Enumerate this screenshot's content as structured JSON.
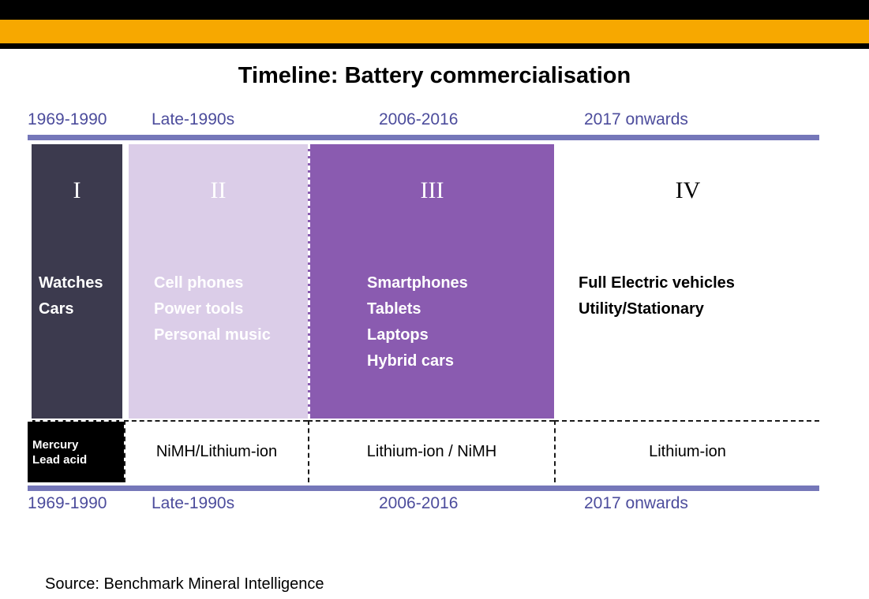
{
  "slide": {
    "title": "Timeline: Battery commercialisation",
    "source": "Source: Benchmark Mineral Intelligence"
  },
  "timeline": {
    "periods": [
      "1969-1990",
      "Late-1990s",
      "2006-2016",
      "2017 onwards"
    ]
  },
  "phases": [
    {
      "numeral": "I",
      "products": [
        "Watches",
        "Cars"
      ],
      "chemistry_lines": [
        "Mercury",
        "Lead acid"
      ]
    },
    {
      "numeral": "II",
      "products": [
        "Cell phones",
        "Power tools",
        "Personal music"
      ],
      "chemistry": "NiMH/Lithium-ion"
    },
    {
      "numeral": "III",
      "products": [
        "Smartphones",
        "Tablets",
        "Laptops",
        "Hybrid cars"
      ],
      "chemistry": "Lithium-ion / NiMH"
    },
    {
      "numeral": "IV",
      "products": [
        "Full Electric vehicles",
        "Utility/Stationary"
      ],
      "chemistry": "Lithium-ion"
    }
  ],
  "colors": {
    "accent_bar": "#F7A800",
    "background": "#000000",
    "period_text": "#4C4C9C",
    "timeline_bar": "#7577B9",
    "phase_1_fill": "#3C3A4E",
    "phase_2_fill": "#DBCDE8",
    "phase_3_fill": "#8A5BB0",
    "phase_4_fill": "#FFFFFF"
  }
}
